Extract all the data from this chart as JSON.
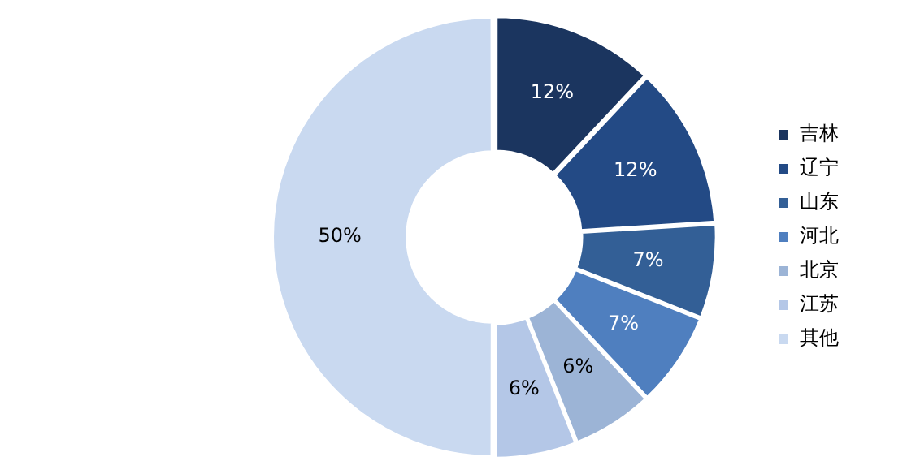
{
  "chart_data": {
    "type": "donut",
    "categories": [
      "吉林",
      "辽宁",
      "山东",
      "河北",
      "北京",
      "江苏",
      "其他"
    ],
    "values": [
      12,
      12,
      7,
      7,
      6,
      6,
      50
    ],
    "colors": [
      "#1b355f",
      "#234a85",
      "#335f96",
      "#4f7fbf",
      "#9cb4d6",
      "#b4c7e7",
      "#c9d9f0"
    ],
    "value_labels": [
      "12%",
      "12%",
      "7%",
      "7%",
      "6%",
      "6%",
      "50%"
    ],
    "legend": "right"
  }
}
